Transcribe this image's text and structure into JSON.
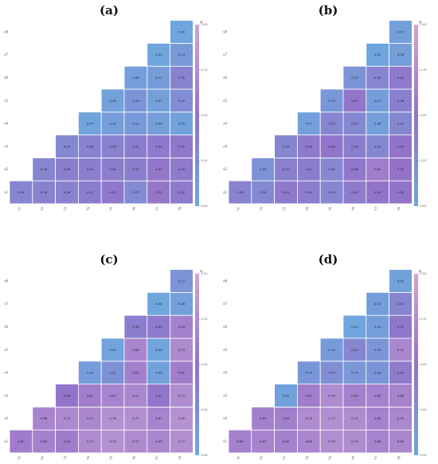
{
  "chart_data": [
    {
      "type": "heatmap",
      "panel_label": "(a)",
      "row_labels": [
        "x1",
        "x2",
        "x3",
        "x4",
        "x5",
        "x6",
        "x7",
        "x8"
      ],
      "col_labels": [
        "x1",
        "x2",
        "x3",
        "x4",
        "x5",
        "x6",
        "x7",
        "x8"
      ],
      "values": [
        [
          0.34,
          0.36,
          0.36,
          0.41,
          0.45,
          0.27,
          0.53,
          0.42
        ],
        [
          null,
          0.33,
          0.38,
          0.4,
          0.4,
          0.39,
          0.47,
          0.42
        ],
        [
          null,
          null,
          0.3,
          0.36,
          0.36,
          0.41,
          0.43,
          0.45
        ],
        [
          null,
          null,
          null,
          0.04,
          0.1,
          0.13,
          0.09,
          0.05
        ],
        [
          null,
          null,
          null,
          null,
          0.06,
          0.16,
          0.07,
          0.25
        ],
        [
          null,
          null,
          null,
          null,
          null,
          0.08,
          0.11,
          0.35
        ],
        [
          null,
          null,
          null,
          null,
          null,
          null,
          0.01,
          0.14
        ],
        [
          null,
          null,
          null,
          null,
          null,
          null,
          null,
          0.0
        ]
      ],
      "colorbar": {
        "title": "q",
        "range": [
          0.0,
          1.0
        ],
        "ticks": [
          "0.00",
          "0.25",
          "0.50",
          "0.75",
          "1.00"
        ]
      }
    },
    {
      "type": "heatmap",
      "panel_label": "(b)",
      "row_labels": [
        "x1",
        "x2",
        "x3",
        "x4",
        "x5",
        "x6",
        "x7",
        "x8"
      ],
      "col_labels": [
        "x1",
        "x2",
        "x3",
        "x4",
        "x5",
        "x6",
        "x7",
        "x8"
      ],
      "values": [
        [
          0.36,
          0.3,
          0.43,
          0.4,
          0.32,
          0.42,
          0.5,
          0.5
        ],
        [
          null,
          0.2,
          0.37,
          0.41,
          0.31,
          0.46,
          0.61,
          0.5
        ],
        [
          null,
          null,
          0.33,
          0.43,
          0.48,
          0.39,
          0.31,
          0.5
        ],
        [
          null,
          null,
          null,
          0.07,
          0.33,
          0.3,
          0.08,
          0.31
        ],
        [
          null,
          null,
          null,
          null,
          0.15,
          0.47,
          0.11,
          0.38
        ],
        [
          null,
          null,
          null,
          null,
          null,
          0.19,
          0.32,
          0.44
        ],
        [
          null,
          null,
          null,
          null,
          null,
          null,
          0.02,
          0.08
        ],
        [
          null,
          null,
          null,
          null,
          null,
          null,
          null,
          0.07
        ]
      ],
      "colorbar": {
        "title": "q",
        "range": [
          0.0,
          1.0
        ],
        "ticks": [
          "0.00",
          "0.25",
          "0.50",
          "0.75",
          "1.00"
        ]
      }
    },
    {
      "type": "heatmap",
      "panel_label": "(c)",
      "row_labels": [
        "x1",
        "x2",
        "x3",
        "x4",
        "x5",
        "x6",
        "x7",
        "x8"
      ],
      "col_labels": [
        "x1",
        "x2",
        "x3",
        "x4",
        "x5",
        "x6",
        "x7",
        "x8"
      ],
      "values": [
        [
          0.6,
          0.65,
          0.6,
          0.73,
          0.78,
          0.73,
          0.69,
          0.77
        ],
        [
          null,
          0.68,
          0.72,
          0.71,
          0.78,
          0.77,
          0.67,
          0.8
        ],
        [
          null,
          null,
          0.48,
          0.61,
          0.67,
          0.71,
          0.47,
          0.75
        ],
        [
          null,
          null,
          null,
          0.1,
          0.21,
          0.63,
          0.05,
          0.61
        ],
        [
          null,
          null,
          null,
          null,
          0.04,
          0.68,
          0.04,
          0.73
        ],
        [
          null,
          null,
          null,
          null,
          null,
          0.38,
          0.43,
          0.64
        ],
        [
          null,
          null,
          null,
          null,
          null,
          null,
          0.0,
          0.08
        ],
        [
          null,
          null,
          null,
          null,
          null,
          null,
          null,
          0.17
        ]
      ],
      "colorbar": {
        "title": "q",
        "range": [
          0.0,
          1.0
        ],
        "ticks": [
          "0.00",
          "0.25",
          "0.50",
          "0.75",
          "1.00"
        ]
      }
    },
    {
      "type": "heatmap",
      "panel_label": "(d)",
      "row_labels": [
        "x1",
        "x2",
        "x3",
        "x4",
        "x5",
        "x6",
        "x7",
        "x8"
      ],
      "col_labels": [
        "x1",
        "x2",
        "x3",
        "x4",
        "x5",
        "x6",
        "x7",
        "x8"
      ],
      "values": [
        [
          0.64,
          0.67,
          0.65,
          0.69,
          0.76,
          0.74,
          0.66,
          0.69
        ],
        [
          null,
          0.63,
          0.63,
          0.74,
          0.77,
          0.74,
          0.65,
          0.7
        ],
        [
          null,
          null,
          0.05,
          0.61,
          0.74,
          0.64,
          0.65,
          0.66
        ],
        [
          null,
          null,
          null,
          0.15,
          0.24,
          0.14,
          0.18,
          0.42
        ],
        [
          null,
          null,
          null,
          null,
          0.12,
          0.32,
          0.16,
          0.7
        ],
        [
          null,
          null,
          null,
          null,
          null,
          0.01,
          0.1,
          0.45
        ],
        [
          null,
          null,
          null,
          null,
          null,
          null,
          0.1,
          0.33
        ],
        [
          null,
          null,
          null,
          null,
          null,
          null,
          null,
          0.05
        ]
      ],
      "colorbar": {
        "title": "q",
        "range": [
          0.0,
          1.0
        ],
        "ticks": [
          "0.00",
          "0.25",
          "0.50",
          "0.75",
          "1.00"
        ]
      }
    }
  ],
  "colors": {
    "low": "#6ea7de",
    "mid": "#9373c9",
    "high": "#cda6d6",
    "cell_border": "#ffffff",
    "background": "#ffffff"
  }
}
